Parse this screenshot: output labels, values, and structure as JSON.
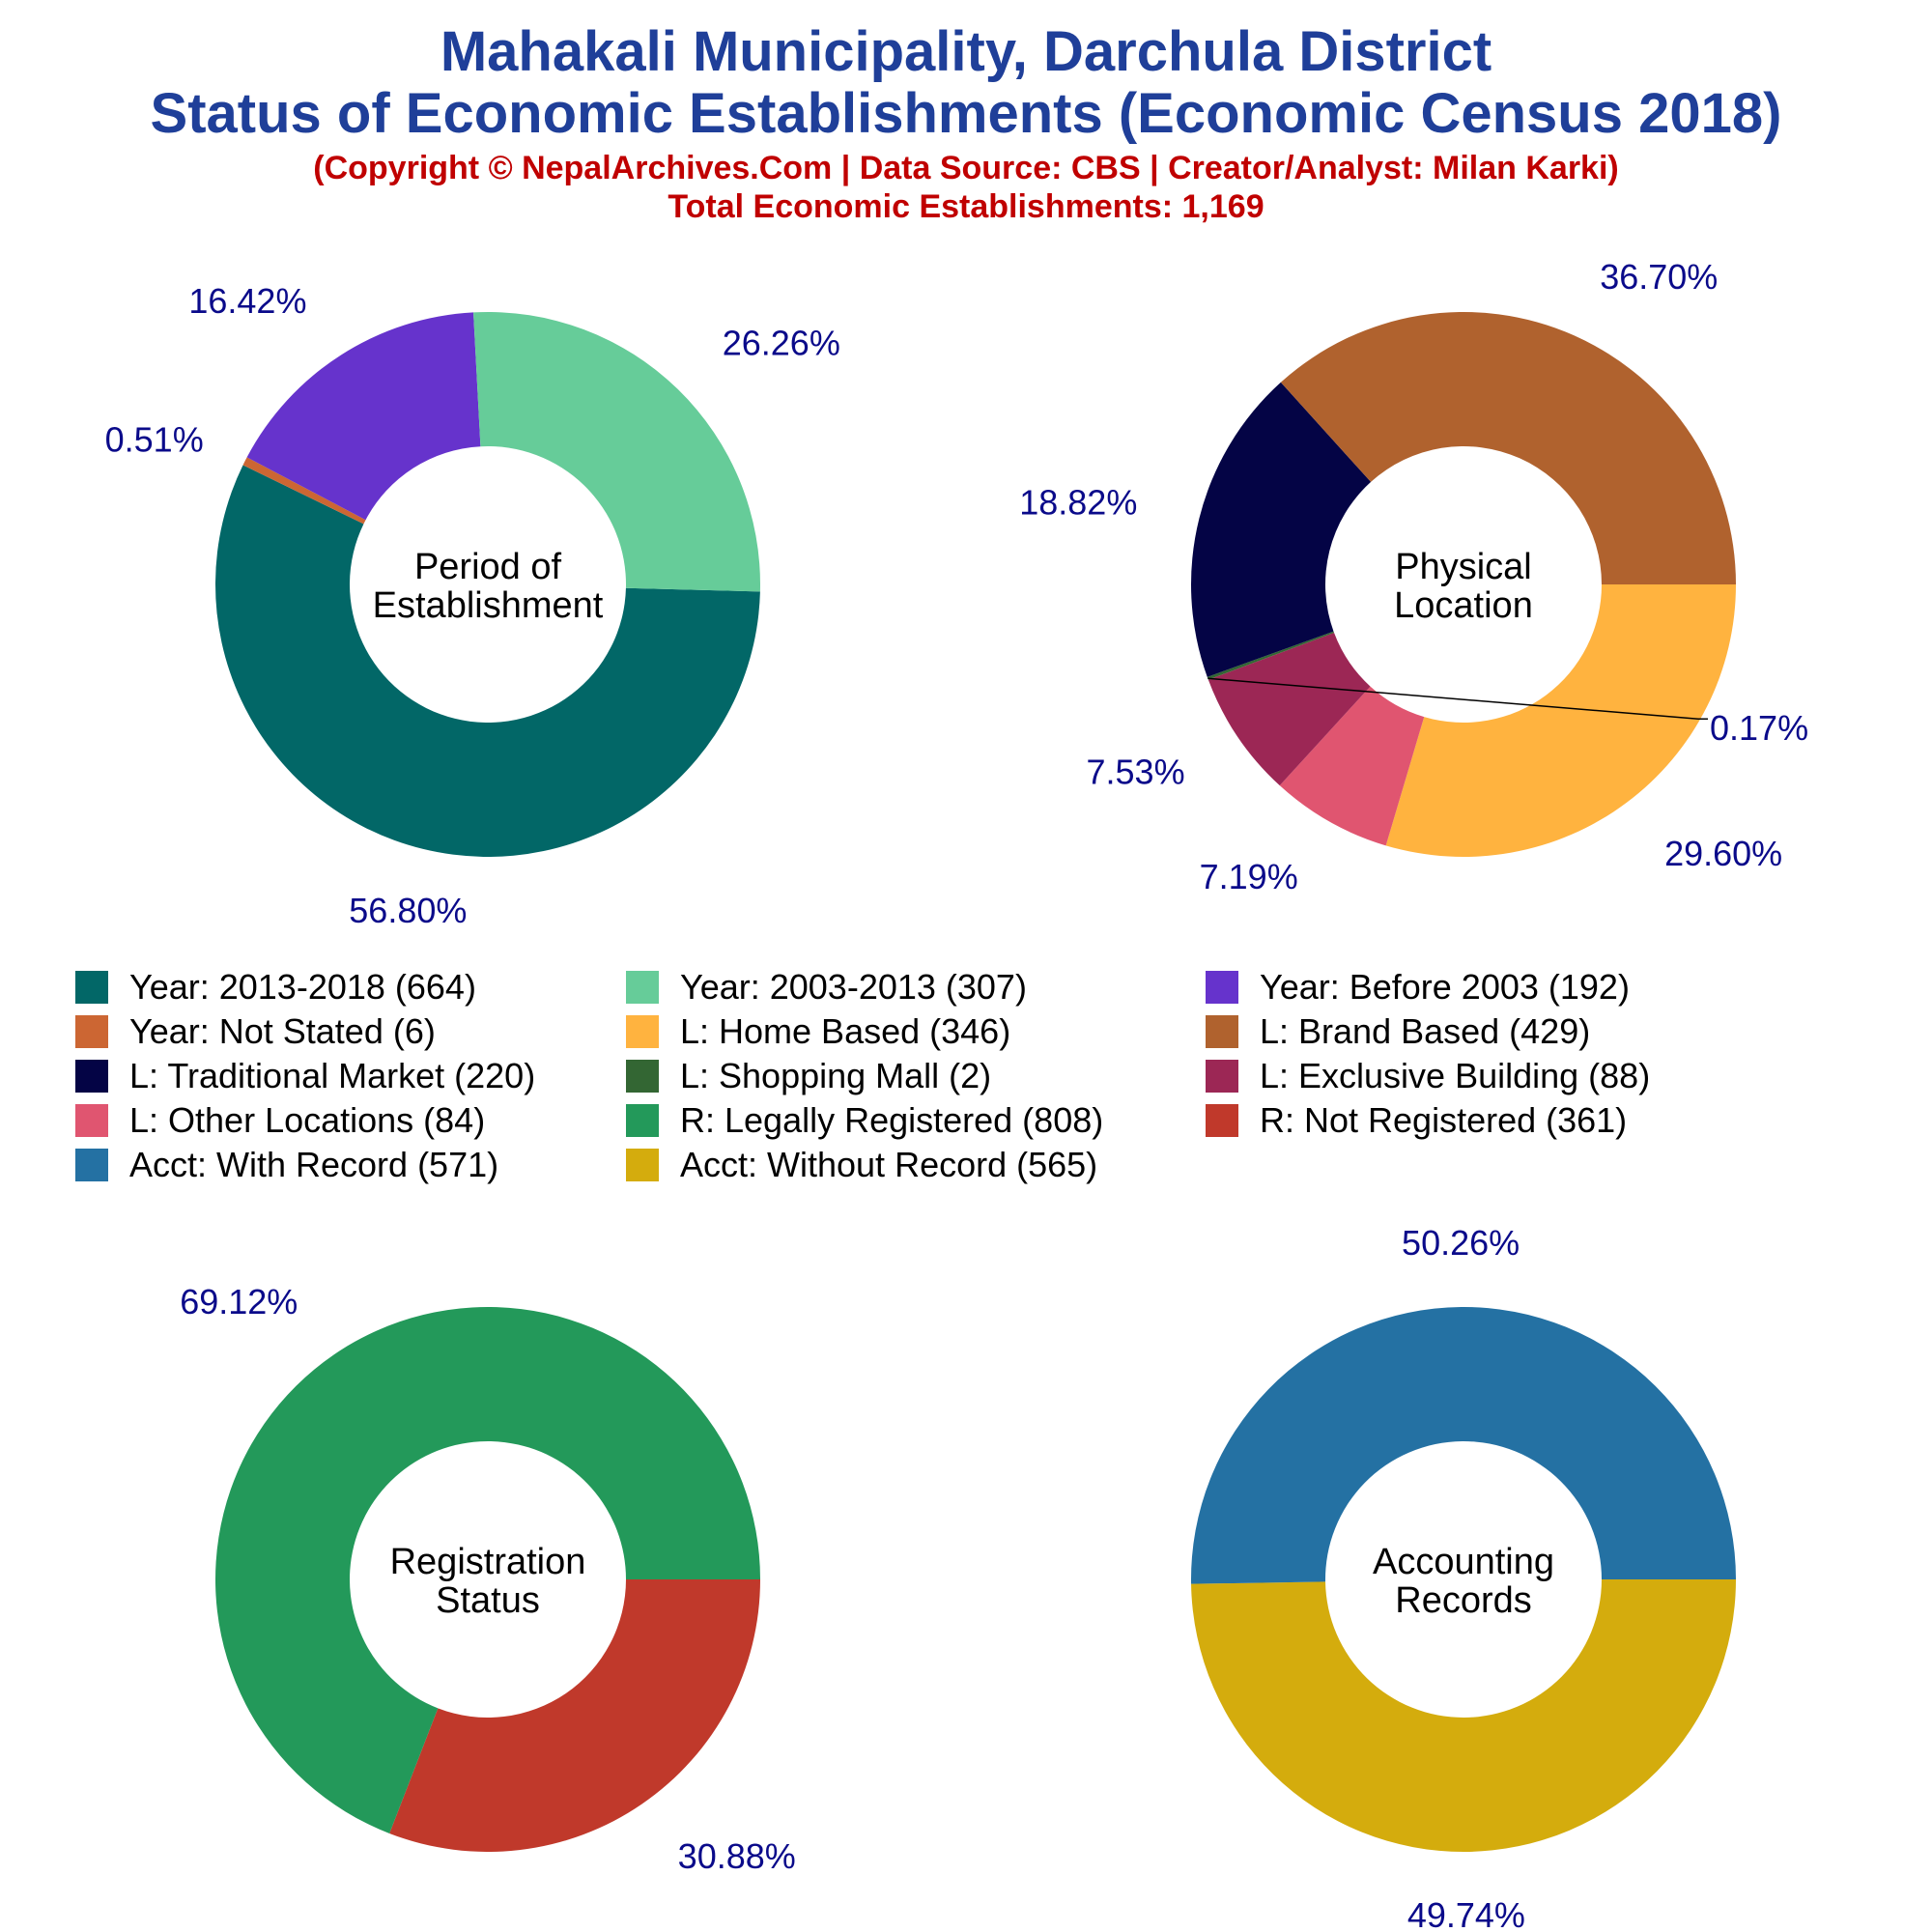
{
  "header": {
    "title_line1": "Mahakali Municipality, Darchula District",
    "title_line2": "Status of Economic Establishments (Economic Census 2018)",
    "credit": "(Copyright © NepalArchives.Com | Data Source: CBS | Creator/Analyst: Milan Karki)",
    "total": "Total Economic Establishments: 1,169"
  },
  "colors": {
    "title": "#1f3f99",
    "subtitle": "#c00000",
    "pct_label": "#0a0a8a",
    "center_text": "#000000"
  },
  "legend": [
    {
      "label": "Year: 2013-2018 (664)",
      "color": "#026767"
    },
    {
      "label": "Year: 2003-2013 (307)",
      "color": "#66cc99"
    },
    {
      "label": "Year: Before 2003 (192)",
      "color": "#6633cc"
    },
    {
      "label": "Year: Not Stated (6)",
      "color": "#cc6633"
    },
    {
      "label": "L: Home Based (346)",
      "color": "#ffb33f"
    },
    {
      "label": "L: Brand Based (429)",
      "color": "#b0622e"
    },
    {
      "label": "L: Traditional Market (220)",
      "color": "#040445"
    },
    {
      "label": "L: Shopping Mall (2)",
      "color": "#336633"
    },
    {
      "label": "L: Exclusive Building (88)",
      "color": "#9c2755"
    },
    {
      "label": "L: Other Locations (84)",
      "color": "#e05570"
    },
    {
      "label": "R: Legally Registered (808)",
      "color": "#23995a"
    },
    {
      "label": "R: Not Registered (361)",
      "color": "#c0392b"
    },
    {
      "label": "Acct: With Record (571)",
      "color": "#2471a3"
    },
    {
      "label": "Acct: Without Record (565)",
      "color": "#d4ac0d"
    }
  ],
  "chart_data": [
    {
      "type": "pie",
      "center_label": [
        "Period of",
        "Establishment"
      ],
      "slices": [
        {
          "name": "Year: 2013-2018",
          "value": 664,
          "pct_label": "56.80%",
          "color": "#026767"
        },
        {
          "name": "Year: Not Stated",
          "value": 6,
          "pct_label": "0.51%",
          "color": "#cc6633"
        },
        {
          "name": "Year: Before 2003",
          "value": 192,
          "pct_label": "16.42%",
          "color": "#6633cc"
        },
        {
          "name": "Year: 2003-2013",
          "value": 307,
          "pct_label": "26.26%",
          "color": "#66cc99"
        }
      ]
    },
    {
      "type": "pie",
      "center_label": [
        "Physical",
        "Location"
      ],
      "slices": [
        {
          "name": "L: Home Based",
          "value": 346,
          "pct_label": "29.60%",
          "color": "#ffb33f"
        },
        {
          "name": "L: Other Locations",
          "value": 84,
          "pct_label": "7.19%",
          "color": "#e05570"
        },
        {
          "name": "L: Exclusive Building",
          "value": 88,
          "pct_label": "7.53%",
          "color": "#9c2755"
        },
        {
          "name": "L: Shopping Mall",
          "value": 2,
          "pct_label": "0.17%",
          "color": "#336633"
        },
        {
          "name": "L: Traditional Market",
          "value": 220,
          "pct_label": "18.82%",
          "color": "#040445"
        },
        {
          "name": "L: Brand Based",
          "value": 429,
          "pct_label": "36.70%",
          "color": "#b0622e"
        }
      ]
    },
    {
      "type": "pie",
      "center_label": [
        "Registration",
        "Status"
      ],
      "slices": [
        {
          "name": "R: Not Registered",
          "value": 361,
          "pct_label": "30.88%",
          "color": "#c0392b"
        },
        {
          "name": "R: Legally Registered",
          "value": 808,
          "pct_label": "69.12%",
          "color": "#23995a"
        }
      ]
    },
    {
      "type": "pie",
      "center_label": [
        "Accounting",
        "Records"
      ],
      "slices": [
        {
          "name": "Acct: Without Record",
          "value": 565,
          "pct_label": "49.74%",
          "color": "#d4ac0d"
        },
        {
          "name": "Acct: With Record",
          "value": 571,
          "pct_label": "50.26%",
          "color": "#2471a3"
        }
      ]
    }
  ]
}
